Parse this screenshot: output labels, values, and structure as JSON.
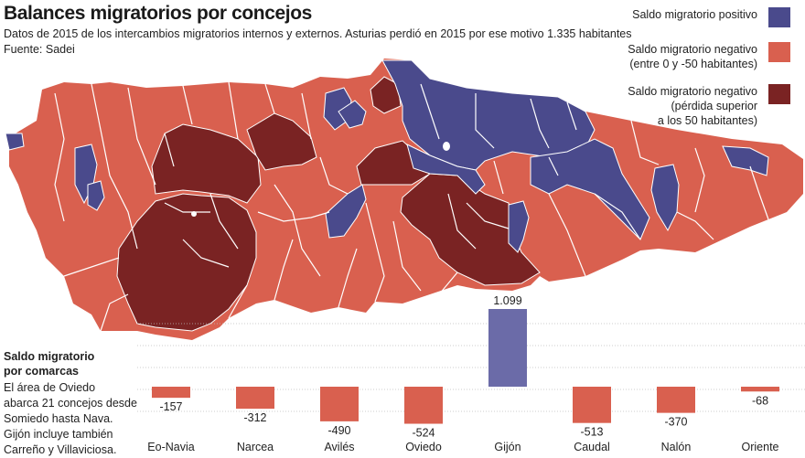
{
  "header": {
    "title": "Balances migratorios por concejos",
    "subtitle": "Datos de 2015 de los intercambios migratorios internos y externos. Asturias perdió en 2015 por ese motivo 1.335 habitantes",
    "source": "Fuente: Sadei"
  },
  "legend": {
    "items": [
      {
        "label": "Saldo migratorio positivo",
        "color": "#4a4a8c"
      },
      {
        "label": "Saldo migratorio negativo\n(entre 0 y -50 habitantes)",
        "color": "#d9604f"
      },
      {
        "label": "Saldo migratorio negativo\n(pérdida superior\na los 50 habitantes)",
        "color": "#7a2323"
      }
    ]
  },
  "sidebar": {
    "title": "Saldo migratorio\npor comarcas",
    "text": "El área de Oviedo\nabarca 21 concejos desde\nSomiedo hasta Nava.\nGijón incluye también\nCarreño y Villaviciosa."
  },
  "colors": {
    "positive": "#4a4a8c",
    "negative_small": "#d9604f",
    "negative_large": "#7a2323",
    "border": "#ffffff",
    "bar_negative": "#d9604f",
    "bar_positive": "#6b6ba8"
  },
  "chart_data": {
    "type": "bar",
    "title": "Saldo migratorio por comarcas",
    "categories": [
      "Eo-Navia",
      "Narcea",
      "Avilés",
      "Oviedo",
      "Gijón",
      "Caudal",
      "Nalón",
      "Oriente"
    ],
    "values": [
      -157,
      -312,
      -490,
      -524,
      1099,
      -513,
      -370,
      -68
    ],
    "value_labels": [
      "-157",
      "-312",
      "-490",
      "-524",
      "1.099",
      "-513",
      "-370",
      "-68"
    ],
    "xlabel": "",
    "ylabel": "",
    "ylim": [
      -600,
      1100
    ],
    "grid": true
  }
}
